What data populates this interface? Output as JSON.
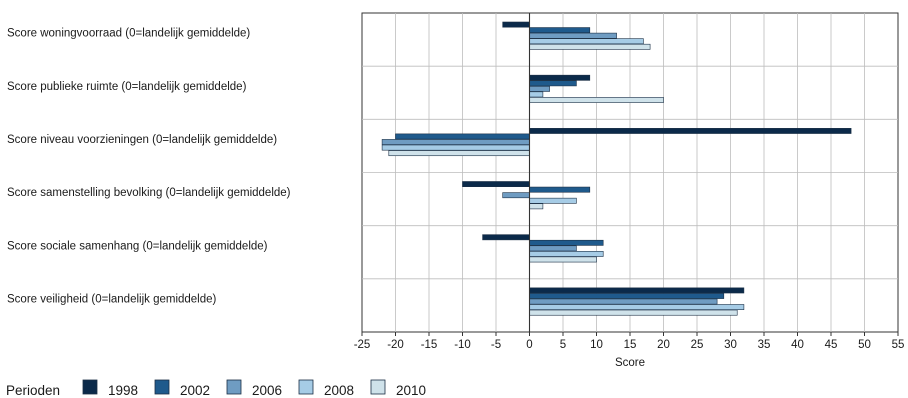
{
  "chart_data": {
    "type": "bar",
    "orientation": "horizontal",
    "categories": [
      "Score woningvoorraad (0=landelijk gemiddelde)",
      "Score publieke ruimte (0=landelijk gemiddelde)",
      "Score niveau voorzieningen (0=landelijk gemiddelde)",
      "Score samenstelling bevolking (0=landelijk gemiddelde)",
      "Score sociale samenhang (0=landelijk gemiddelde)",
      "Score veiligheid (0=landelijk gemiddelde)"
    ],
    "series": [
      {
        "name": "1998",
        "color": "#0b2a4a",
        "values": [
          -4,
          9,
          48,
          -10,
          -7,
          32
        ]
      },
      {
        "name": "2002",
        "color": "#1f5a8c",
        "values": [
          9,
          7,
          -20,
          9,
          11,
          29
        ]
      },
      {
        "name": "2006",
        "color": "#6f9cc2",
        "values": [
          13,
          3,
          -22,
          -4,
          7,
          28
        ]
      },
      {
        "name": "2008",
        "color": "#a6cce6",
        "values": [
          17,
          2,
          -22,
          7,
          11,
          32
        ]
      },
      {
        "name": "2010",
        "color": "#cfe2ea",
        "values": [
          18,
          20,
          -21,
          2,
          10,
          31
        ]
      }
    ],
    "xlabel": "Score",
    "xlim": [
      -25,
      55
    ],
    "xticks": [
      "-25",
      "-20",
      "-15",
      "-10",
      "-5",
      "0",
      "5",
      "10",
      "15",
      "20",
      "25",
      "30",
      "35",
      "40",
      "45",
      "50",
      "55"
    ],
    "grid": true,
    "legend_title": "Perioden",
    "legend_position": "bottom-left"
  }
}
